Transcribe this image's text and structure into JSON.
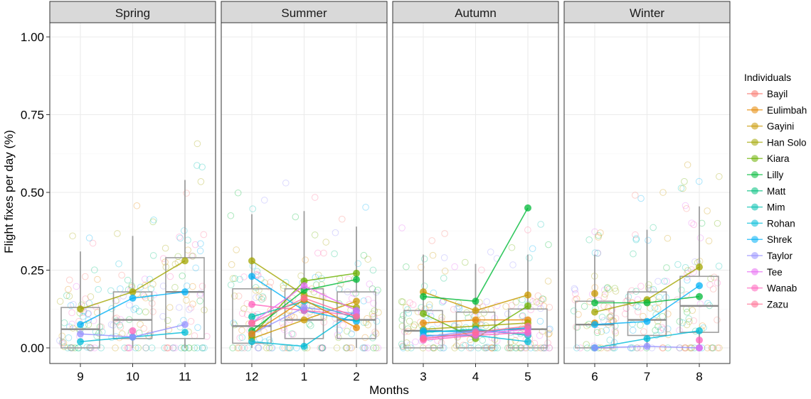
{
  "chart_data": {
    "type": "scatter",
    "xlabel": "Months",
    "ylabel": "Flight fixes per day (%)",
    "ylim": [
      0,
      1.05
    ],
    "yticks": [
      0.0,
      0.25,
      0.5,
      0.75,
      1.0
    ],
    "ytick_labels": [
      "0.00",
      "0.25",
      "0.50",
      "0.75",
      "1.00"
    ],
    "grid": true,
    "legend": {
      "title": "Individuals",
      "placement": "right",
      "entries": [
        "Bayil",
        "Eulimbah",
        "Gayini",
        "Han Solo",
        "Kiara",
        "Lilly",
        "Matt",
        "Mim",
        "Rohan",
        "Shrek",
        "Taylor",
        "Tee",
        "Wanab",
        "Zazu"
      ]
    },
    "colors": {
      "Bayil": "#F8766D",
      "Eulimbah": "#E58700",
      "Gayini": "#C99800",
      "Han Solo": "#A3A500",
      "Kiara": "#6BB100",
      "Lilly": "#00BA38",
      "Matt": "#00BF7D",
      "Mim": "#00C0AF",
      "Rohan": "#00BCD8",
      "Shrek": "#00B0F6",
      "Taylor": "#9590FF",
      "Tee": "#E76BF3",
      "Wanab": "#FF62BC",
      "Zazu": "#FF6C91"
    },
    "facets": [
      {
        "season": "Spring",
        "months": [
          "9",
          "10",
          "11"
        ],
        "boxes": [
          {
            "q1": 0.0,
            "median": 0.06,
            "q3": 0.13,
            "whisker_low": 0.0,
            "whisker_high": 0.31
          },
          {
            "q1": 0.03,
            "median": 0.09,
            "q3": 0.18,
            "whisker_low": 0.0,
            "whisker_high": 0.36
          },
          {
            "q1": 0.03,
            "median": 0.18,
            "q3": 0.29,
            "whisker_low": 0.0,
            "whisker_high": 0.54
          }
        ],
        "means": {
          "Han Solo": [
            0.125,
            0.18,
            0.28
          ],
          "Shrek": [
            0.075,
            0.16,
            0.18
          ],
          "Rohan": [
            0.02,
            0.035,
            0.05
          ],
          "Taylor": [
            0.045,
            0.035,
            0.075
          ],
          "Wanab": [
            null,
            0.055,
            null
          ]
        }
      },
      {
        "season": "Summer",
        "months": [
          "12",
          "1",
          "2"
        ],
        "boxes": [
          {
            "q1": 0.015,
            "median": 0.07,
            "q3": 0.19,
            "whisker_low": 0.0,
            "whisker_high": 0.43
          },
          {
            "q1": 0.03,
            "median": 0.09,
            "q3": 0.19,
            "whisker_low": 0.0,
            "whisker_high": 0.44
          },
          {
            "q1": 0.03,
            "median": 0.09,
            "q3": 0.18,
            "whisker_low": 0.0,
            "whisker_high": 0.39
          }
        ],
        "means": {
          "Han Solo": [
            0.28,
            0.17,
            0.13
          ],
          "Gayini": [
            0.03,
            0.09,
            0.15
          ],
          "Kiara": [
            0.04,
            0.215,
            0.24
          ],
          "Lilly": [
            0.055,
            0.185,
            0.22
          ],
          "Shrek": [
            0.23,
            0.12,
            0.085
          ],
          "Rohan": [
            0.02,
            0.005,
            0.12
          ],
          "Mim": [
            0.1,
            0.15,
            0.095
          ],
          "Wanab": [
            0.14,
            0.12,
            0.105
          ],
          "Taylor": [
            0.045,
            0.13,
            0.11
          ],
          "Eulimbah": [
            0.045,
            0.155,
            0.065
          ],
          "Tee": [
            0.08,
            0.2,
            0.12
          ],
          "Zazu": [
            0.08,
            0.16,
            0.1
          ]
        }
      },
      {
        "season": "Autumn",
        "months": [
          "3",
          "4",
          "5"
        ],
        "boxes": [
          {
            "q1": 0.0,
            "median": 0.055,
            "q3": 0.12,
            "whisker_low": 0.0,
            "whisker_high": 0.3
          },
          {
            "q1": 0.0,
            "median": 0.055,
            "q3": 0.115,
            "whisker_low": 0.0,
            "whisker_high": 0.27
          },
          {
            "q1": 0.0,
            "median": 0.06,
            "q3": 0.125,
            "whisker_low": 0.0,
            "whisker_high": 0.3
          }
        ],
        "means": {
          "Gayini": [
            0.18,
            0.12,
            0.17
          ],
          "Lilly": [
            0.165,
            0.15,
            0.45
          ],
          "Kiara": [
            0.11,
            0.03,
            0.135
          ],
          "Eulimbah": [
            0.08,
            0.09,
            0.09
          ],
          "Han Solo": [
            0.06,
            0.07,
            0.08
          ],
          "Mim": [
            0.05,
            0.06,
            0.04
          ],
          "Rohan": [
            0.04,
            0.04,
            0.02
          ],
          "Shrek": [
            0.055,
            0.05,
            0.065
          ],
          "Taylor": [
            0.035,
            0.055,
            0.045
          ],
          "Tee": [
            0.03,
            0.045,
            0.06
          ],
          "Wanab": [
            0.025,
            0.04,
            0.05
          ],
          "Zazu": [
            0.03,
            0.05,
            0.07
          ]
        }
      },
      {
        "season": "Winter",
        "months": [
          "6",
          "7",
          "8"
        ],
        "boxes": [
          {
            "q1": 0.0,
            "median": 0.075,
            "q3": 0.15,
            "whisker_low": 0.0,
            "whisker_high": 0.3
          },
          {
            "q1": 0.04,
            "median": 0.09,
            "q3": 0.18,
            "whisker_low": 0.0,
            "whisker_high": 0.38
          },
          {
            "q1": 0.05,
            "median": 0.135,
            "q3": 0.23,
            "whisker_low": 0.0,
            "whisker_high": 0.455
          }
        ],
        "means": {
          "Gayini": [
            0.175,
            null,
            null
          ],
          "Han Solo": [
            0.115,
            0.155,
            0.26
          ],
          "Lilly": [
            0.145,
            0.145,
            0.165
          ],
          "Eulimbah": [
            0.08,
            null,
            null
          ],
          "Shrek": [
            0.075,
            0.085,
            0.2
          ],
          "Rohan": [
            0.0,
            0.03,
            0.055
          ],
          "Taylor": [
            0.0,
            0.005,
            0.0
          ],
          "Tee": [
            null,
            null,
            0.0
          ],
          "Wanab": [
            null,
            null,
            0.025
          ]
        }
      }
    ]
  }
}
